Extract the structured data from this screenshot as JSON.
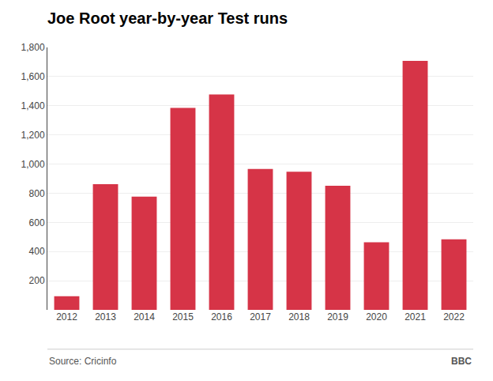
{
  "chart_data": {
    "type": "bar",
    "title": "Joe Root year-by-year Test runs",
    "categories": [
      "2012",
      "2013",
      "2014",
      "2015",
      "2016",
      "2017",
      "2018",
      "2019",
      "2020",
      "2021",
      "2022"
    ],
    "values": [
      93,
      862,
      777,
      1385,
      1477,
      966,
      948,
      851,
      464,
      1708,
      484
    ],
    "color": "#d63447",
    "ylim": [
      0,
      1800
    ],
    "yticks": [
      200,
      400,
      600,
      800,
      {
        "value": 1000,
        "label": "1,000"
      },
      {
        "value": 1200,
        "label": "1,200"
      },
      {
        "value": 1400,
        "label": "1,400"
      },
      {
        "value": 1600,
        "label": "1,600"
      },
      {
        "value": 1800,
        "label": "1,800"
      }
    ],
    "grid": true,
    "annotations": [
      "Source: Cricinfo",
      "BBC"
    ]
  }
}
